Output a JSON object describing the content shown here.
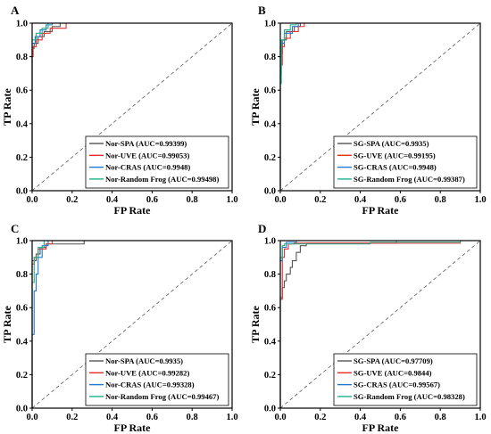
{
  "chart_data": [
    {
      "panel": "A",
      "type": "line",
      "xlabel": "FP Rate",
      "ylabel": "TP Rate",
      "xlim": [
        0,
        1
      ],
      "ylim": [
        0,
        1
      ],
      "ticks": [
        "0.0",
        "0.2",
        "0.4",
        "0.6",
        "0.8",
        "1.0"
      ],
      "legend_position": "bottom-right",
      "series": [
        {
          "name": "Nor-SPA (AUC=0.99399)",
          "color": "#555555",
          "points": [
            [
              0,
              0
            ],
            [
              0,
              0.85
            ],
            [
              0.01,
              0.85
            ],
            [
              0.01,
              0.88
            ],
            [
              0.03,
              0.88
            ],
            [
              0.03,
              0.92
            ],
            [
              0.06,
              0.92
            ],
            [
              0.06,
              0.95
            ],
            [
              0.1,
              0.95
            ],
            [
              0.1,
              0.98
            ],
            [
              0.14,
              0.98
            ],
            [
              0.14,
              1
            ],
            [
              1,
              1
            ]
          ]
        },
        {
          "name": "Nor-UVE (AUC=0.99053)",
          "color": "#e8302a",
          "points": [
            [
              0,
              0
            ],
            [
              0,
              0.8
            ],
            [
              0.005,
              0.8
            ],
            [
              0.005,
              0.86
            ],
            [
              0.02,
              0.86
            ],
            [
              0.02,
              0.9
            ],
            [
              0.05,
              0.9
            ],
            [
              0.05,
              0.94
            ],
            [
              0.09,
              0.94
            ],
            [
              0.09,
              0.97
            ],
            [
              0.17,
              0.97
            ],
            [
              0.17,
              1
            ],
            [
              1,
              1
            ]
          ]
        },
        {
          "name": "Nor-CRAS (AUC=0.9948)",
          "color": "#1f77d4",
          "points": [
            [
              0,
              0
            ],
            [
              0,
              0.88
            ],
            [
              0.015,
              0.88
            ],
            [
              0.015,
              0.92
            ],
            [
              0.04,
              0.92
            ],
            [
              0.04,
              0.96
            ],
            [
              0.07,
              0.96
            ],
            [
              0.07,
              0.99
            ],
            [
              0.1,
              0.99
            ],
            [
              0.1,
              1
            ],
            [
              1,
              1
            ]
          ]
        },
        {
          "name": "Nor-Random Frog (AUC=0.99498)",
          "color": "#20b08a",
          "points": [
            [
              0,
              0
            ],
            [
              0,
              0.9
            ],
            [
              0.02,
              0.9
            ],
            [
              0.02,
              0.94
            ],
            [
              0.05,
              0.94
            ],
            [
              0.05,
              0.97
            ],
            [
              0.08,
              0.97
            ],
            [
              0.08,
              1
            ],
            [
              1,
              1
            ]
          ]
        }
      ]
    },
    {
      "panel": "B",
      "type": "line",
      "xlabel": "FP Rate",
      "ylabel": "TP Rate",
      "xlim": [
        0,
        1
      ],
      "ylim": [
        0,
        1
      ],
      "ticks": [
        "0.0",
        "0.2",
        "0.4",
        "0.6",
        "0.8",
        "1.0"
      ],
      "legend_position": "bottom-right",
      "series": [
        {
          "name": "SG-SPA (AUC=0.9935)",
          "color": "#555555",
          "points": [
            [
              0,
              0
            ],
            [
              0,
              0.82
            ],
            [
              0.01,
              0.82
            ],
            [
              0.01,
              0.9
            ],
            [
              0.03,
              0.9
            ],
            [
              0.03,
              0.95
            ],
            [
              0.07,
              0.95
            ],
            [
              0.07,
              0.98
            ],
            [
              0.1,
              0.98
            ],
            [
              0.1,
              1
            ],
            [
              1,
              1
            ]
          ]
        },
        {
          "name": "SG-UVE (AUC=0.99195)",
          "color": "#e8302a",
          "points": [
            [
              0,
              0
            ],
            [
              0,
              0.75
            ],
            [
              0.01,
              0.75
            ],
            [
              0.01,
              0.86
            ],
            [
              0.02,
              0.86
            ],
            [
              0.02,
              0.91
            ],
            [
              0.05,
              0.91
            ],
            [
              0.05,
              0.95
            ],
            [
              0.09,
              0.95
            ],
            [
              0.09,
              0.98
            ],
            [
              0.12,
              0.98
            ],
            [
              0.12,
              1
            ],
            [
              1,
              1
            ]
          ]
        },
        {
          "name": "SG-CRAS (AUC=0.9948)",
          "color": "#1f77d4",
          "points": [
            [
              0,
              0
            ],
            [
              0,
              0.7
            ],
            [
              0.005,
              0.7
            ],
            [
              0.005,
              0.88
            ],
            [
              0.02,
              0.88
            ],
            [
              0.02,
              0.94
            ],
            [
              0.06,
              0.94
            ],
            [
              0.06,
              0.98
            ],
            [
              0.09,
              0.98
            ],
            [
              0.09,
              1
            ],
            [
              1,
              1
            ]
          ]
        },
        {
          "name": "SG-Random Frog (AUC=0.99387)",
          "color": "#20b08a",
          "points": [
            [
              0,
              0
            ],
            [
              0,
              0.64
            ],
            [
              0.005,
              0.64
            ],
            [
              0.005,
              0.9
            ],
            [
              0.02,
              0.9
            ],
            [
              0.02,
              0.96
            ],
            [
              0.05,
              0.96
            ],
            [
              0.05,
              0.99
            ],
            [
              0.08,
              0.99
            ],
            [
              0.08,
              1
            ],
            [
              1,
              1
            ]
          ]
        }
      ]
    },
    {
      "panel": "C",
      "type": "line",
      "xlabel": "FP Rate",
      "ylabel": "TP Rate",
      "xlim": [
        0,
        1
      ],
      "ylim": [
        0,
        1
      ],
      "ticks": [
        "0.0",
        "0.2",
        "0.4",
        "0.6",
        "0.8",
        "1.0"
      ],
      "legend_position": "bottom-right",
      "series": [
        {
          "name": "Nor-SPA (AUC=0.9935)",
          "color": "#555555",
          "points": [
            [
              0,
              0
            ],
            [
              0,
              0.88
            ],
            [
              0.02,
              0.88
            ],
            [
              0.02,
              0.92
            ],
            [
              0.04,
              0.92
            ],
            [
              0.04,
              0.96
            ],
            [
              0.07,
              0.96
            ],
            [
              0.07,
              0.98
            ],
            [
              0.26,
              0.98
            ],
            [
              0.26,
              1
            ],
            [
              1,
              1
            ]
          ]
        },
        {
          "name": "Nor-UVE (AUC=0.99282)",
          "color": "#e8302a",
          "points": [
            [
              0,
              0
            ],
            [
              0,
              0.86
            ],
            [
              0.01,
              0.86
            ],
            [
              0.01,
              0.9
            ],
            [
              0.03,
              0.9
            ],
            [
              0.03,
              0.95
            ],
            [
              0.07,
              0.95
            ],
            [
              0.07,
              0.98
            ],
            [
              0.1,
              0.98
            ],
            [
              0.1,
              1
            ],
            [
              1,
              1
            ]
          ]
        },
        {
          "name": "Nor-CRAS (AUC=0.99328)",
          "color": "#1f77d4",
          "points": [
            [
              0,
              0
            ],
            [
              0,
              0.44
            ],
            [
              0.01,
              0.44
            ],
            [
              0.01,
              0.7
            ],
            [
              0.02,
              0.7
            ],
            [
              0.02,
              0.8
            ],
            [
              0.03,
              0.8
            ],
            [
              0.03,
              0.9
            ],
            [
              0.05,
              0.9
            ],
            [
              0.05,
              0.97
            ],
            [
              0.08,
              0.97
            ],
            [
              0.08,
              1
            ],
            [
              1,
              1
            ]
          ]
        },
        {
          "name": "Nor-Random Frog (AUC=0.99467)",
          "color": "#20b08a",
          "points": [
            [
              0,
              0
            ],
            [
              0,
              0.75
            ],
            [
              0.01,
              0.75
            ],
            [
              0.01,
              0.9
            ],
            [
              0.03,
              0.9
            ],
            [
              0.03,
              0.96
            ],
            [
              0.06,
              0.96
            ],
            [
              0.06,
              1
            ],
            [
              1,
              1
            ]
          ]
        }
      ]
    },
    {
      "panel": "D",
      "type": "line",
      "xlabel": "FP Rate",
      "ylabel": "TP Rate",
      "xlim": [
        0,
        1
      ],
      "ylim": [
        0,
        1
      ],
      "ticks": [
        "0.0",
        "0.2",
        "0.4",
        "0.6",
        "0.8",
        "1.0"
      ],
      "legend_position": "bottom-right",
      "series": [
        {
          "name": "SG-SPA (AUC=0.97709)",
          "color": "#555555",
          "points": [
            [
              0,
              0
            ],
            [
              0,
              0.66
            ],
            [
              0.01,
              0.66
            ],
            [
              0.01,
              0.72
            ],
            [
              0.02,
              0.72
            ],
            [
              0.02,
              0.76
            ],
            [
              0.03,
              0.76
            ],
            [
              0.03,
              0.8
            ],
            [
              0.05,
              0.8
            ],
            [
              0.05,
              0.84
            ],
            [
              0.06,
              0.84
            ],
            [
              0.06,
              0.88
            ],
            [
              0.08,
              0.88
            ],
            [
              0.08,
              0.93
            ],
            [
              0.1,
              0.93
            ],
            [
              0.1,
              0.97
            ],
            [
              0.13,
              0.97
            ],
            [
              0.13,
              0.985
            ],
            [
              0.58,
              0.985
            ],
            [
              0.58,
              1
            ],
            [
              1,
              1
            ]
          ]
        },
        {
          "name": "SG-UVE (AUC=0.9844)",
          "color": "#e8302a",
          "points": [
            [
              0,
              0
            ],
            [
              0,
              0.65
            ],
            [
              0.01,
              0.65
            ],
            [
              0.01,
              0.9
            ],
            [
              0.02,
              0.9
            ],
            [
              0.02,
              0.95
            ],
            [
              0.04,
              0.95
            ],
            [
              0.04,
              0.98
            ],
            [
              0.07,
              0.98
            ],
            [
              0.07,
              0.985
            ],
            [
              0.9,
              0.985
            ],
            [
              0.9,
              1
            ],
            [
              1,
              1
            ]
          ]
        },
        {
          "name": "SG-CRAS (AUC=0.99567)",
          "color": "#1f77d4",
          "points": [
            [
              0,
              0
            ],
            [
              0,
              0.88
            ],
            [
              0.01,
              0.88
            ],
            [
              0.01,
              0.96
            ],
            [
              0.03,
              0.96
            ],
            [
              0.03,
              0.99
            ],
            [
              0.08,
              0.99
            ],
            [
              0.08,
              1
            ],
            [
              1,
              1
            ]
          ]
        },
        {
          "name": "SG-Random Frog (AUC=0.98328)",
          "color": "#20b08a",
          "points": [
            [
              0,
              0
            ],
            [
              0,
              0.9
            ],
            [
              0.01,
              0.9
            ],
            [
              0.01,
              0.97
            ],
            [
              0.02,
              0.97
            ],
            [
              0.02,
              0.98
            ],
            [
              0.45,
              0.98
            ],
            [
              0.45,
              0.99
            ],
            [
              0.9,
              0.99
            ],
            [
              0.9,
              1
            ],
            [
              1,
              1
            ]
          ]
        }
      ]
    }
  ]
}
